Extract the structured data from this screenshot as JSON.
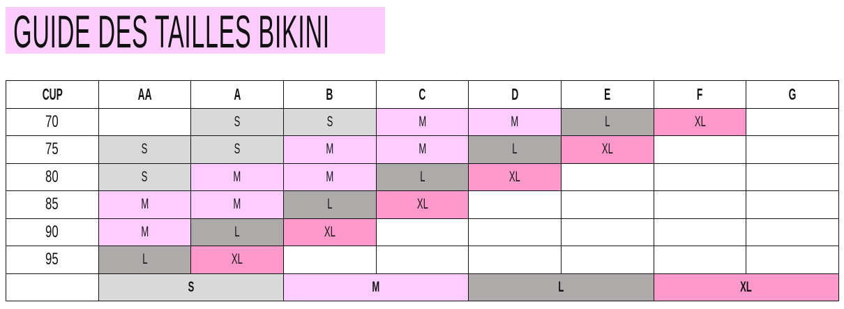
{
  "title": "GUIDE DES TAILLES BIKINI",
  "colors": {
    "S": "#d9d9d9",
    "M": "#ffccff",
    "L": "#aeaaaa",
    "XL": "#ff99cc",
    "title_bg": "#fcccfc"
  },
  "table": {
    "header": [
      "CUP",
      "AA",
      "A",
      "B",
      "C",
      "D",
      "E",
      "F",
      "G"
    ],
    "rows": [
      {
        "band": "70",
        "cells": [
          "",
          "S",
          "S",
          "M",
          "M",
          "L",
          "XL",
          ""
        ]
      },
      {
        "band": "75",
        "cells": [
          "S",
          "S",
          "M",
          "M",
          "L",
          "XL",
          "",
          ""
        ]
      },
      {
        "band": "80",
        "cells": [
          "S",
          "M",
          "M",
          "L",
          "XL",
          "",
          "",
          ""
        ]
      },
      {
        "band": "85",
        "cells": [
          "M",
          "M",
          "L",
          "XL",
          "",
          "",
          "",
          ""
        ]
      },
      {
        "band": "90",
        "cells": [
          "M",
          "L",
          "XL",
          "",
          "",
          "",
          "",
          ""
        ]
      },
      {
        "band": "95",
        "cells": [
          "L",
          "XL",
          "",
          "",
          "",
          "",
          "",
          ""
        ]
      }
    ],
    "legend": [
      "S",
      "M",
      "L",
      "XL"
    ]
  }
}
